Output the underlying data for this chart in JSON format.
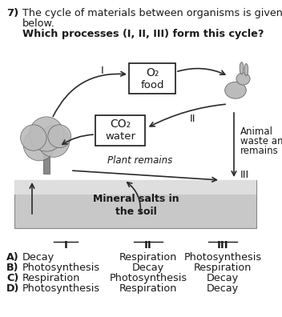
{
  "question_number": "7)",
  "question_text_line1": "The cycle of materials between organisms is given",
  "question_text_line2": "below.",
  "question_bold": "Which processes (I, II, III) form this cycle?",
  "bg_color": "#ffffff",
  "soil_color_light": "#d0d0d0",
  "soil_color_dark": "#a0a0a0",
  "box1_line1": "O₂",
  "box1_line2": "food",
  "box2_line1": "CO₂",
  "box2_line2": "water",
  "label_I": "I",
  "label_II": "II",
  "label_III": "III",
  "animal_line1": "Animal",
  "animal_line2": "waste and",
  "animal_line3": "remains",
  "plant_remains": "Plant remains",
  "soil_line1": "Mineral salts in",
  "soil_line2": "the soil",
  "col_headers": [
    "I",
    "II",
    "III"
  ],
  "answer_labels": [
    "A)",
    "B)",
    "C)",
    "D)"
  ],
  "col1": [
    "Decay",
    "Photosynthesis",
    "Respiration",
    "Photosynthesis"
  ],
  "col2": [
    "Respiration",
    "Decay",
    "Photosynthesis",
    "Respiration"
  ],
  "col3": [
    "Photosynthesis",
    "Respiration",
    "Decay",
    "Decay"
  ],
  "text_color": "#1a1a1a",
  "arrow_color": "#2a2a2a",
  "box_edge_color": "#1a1a1a"
}
